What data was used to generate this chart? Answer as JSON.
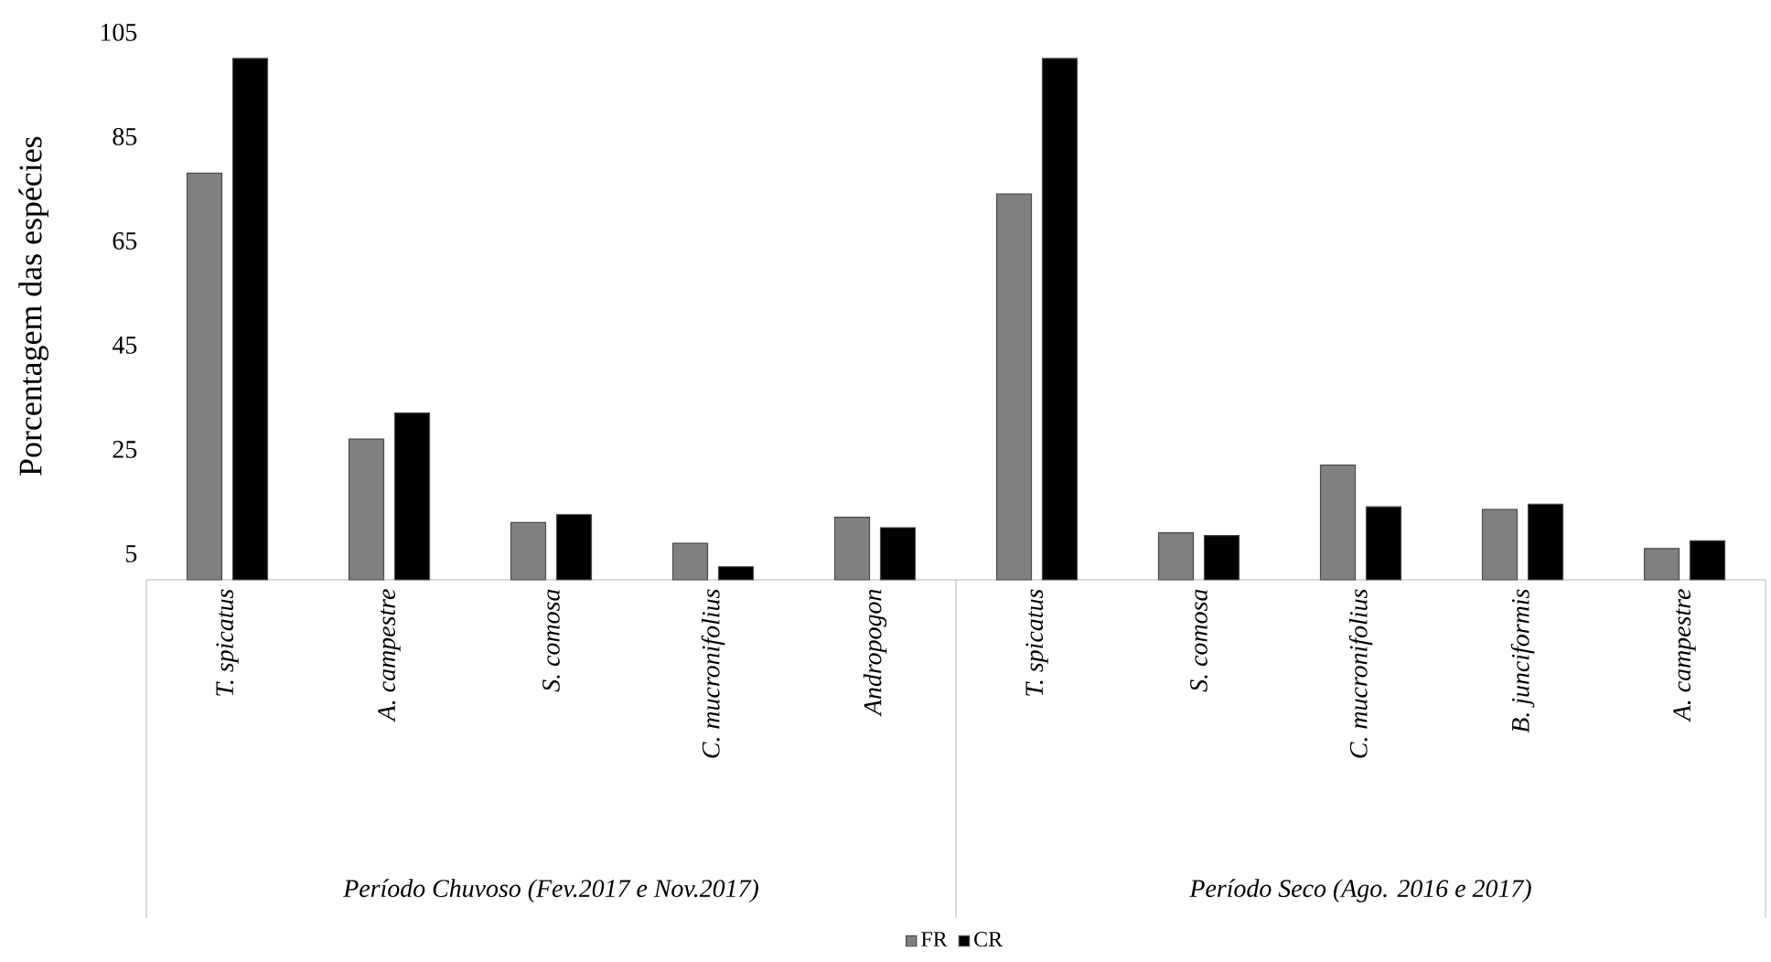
{
  "chart_data": {
    "type": "bar",
    "ylabel": "Porcentagem das espécies",
    "categories": [
      "T. spicatus",
      "A. campestre",
      "S. comosa",
      "C. mucronifolius",
      "Andropogon",
      "T. spicatus",
      "S. comosa",
      "C. mucronifolius",
      "B. junciformis",
      "A. campestre"
    ],
    "series": [
      {
        "name": "FR",
        "color": "#808080",
        "values": [
          78,
          27,
          11,
          7,
          12,
          74,
          9,
          22,
          13.5,
          6
        ]
      },
      {
        "name": "CR",
        "color": "#000000",
        "values": [
          100,
          32,
          12.5,
          2.5,
          10,
          100,
          8.5,
          14,
          14.5,
          7.5
        ]
      }
    ],
    "annotations": [
      "Período Chuvoso (Fev.2017 e Nov.2017)",
      "Período Seco (Ago. 2016 e 2017)"
    ],
    "ylim": [
      0,
      105
    ],
    "yticks": [
      5,
      25,
      45,
      65,
      85,
      105
    ],
    "legend": "bottom"
  }
}
